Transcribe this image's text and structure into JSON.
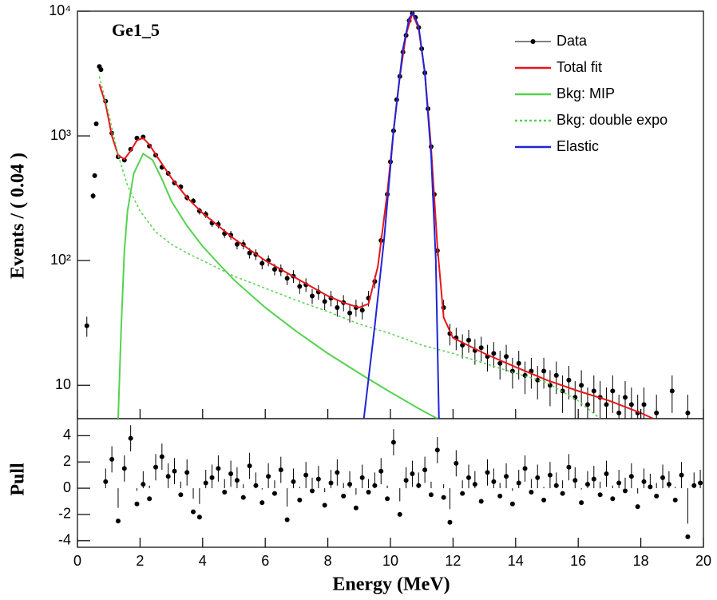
{
  "chart_data": [
    {
      "type": "line",
      "label": "Ge1_5",
      "ylabel": "Events / ( 0.04 )",
      "log_y": true,
      "legend": "top-right",
      "xlim": [
        0,
        20
      ],
      "ylim": [
        5.4,
        10000
      ],
      "yticks": [
        {
          "value": 10,
          "label": "10"
        },
        {
          "value": 100,
          "label": "10²"
        },
        {
          "value": 1000,
          "label": "10³"
        },
        {
          "value": 10000,
          "label": "10⁴"
        }
      ],
      "series": [
        {
          "name": "Data",
          "kind": "points",
          "color": "#000000",
          "x": [
            0.3,
            0.5,
            0.55,
            0.6,
            0.7,
            0.75,
            0.9,
            1.1,
            1.3,
            1.5,
            1.7,
            1.9,
            2.1,
            2.3,
            2.5,
            2.7,
            2.9,
            3.1,
            3.3,
            3.5,
            3.7,
            3.9,
            4.1,
            4.3,
            4.5,
            4.7,
            4.9,
            5.1,
            5.3,
            5.5,
            5.7,
            5.9,
            6.1,
            6.3,
            6.5,
            6.7,
            6.9,
            7.1,
            7.3,
            7.5,
            7.7,
            7.9,
            8.1,
            8.3,
            8.5,
            8.7,
            8.9,
            9.1,
            9.3,
            9.5,
            9.7,
            9.9,
            10.0,
            10.1,
            10.2,
            10.3,
            10.4,
            10.5,
            10.6,
            10.7,
            10.8,
            10.9,
            11.0,
            11.1,
            11.2,
            11.3,
            11.4,
            11.5,
            11.7,
            11.9,
            12.1,
            12.3,
            12.5,
            12.7,
            12.9,
            13.1,
            13.3,
            13.5,
            13.7,
            13.9,
            14.1,
            14.3,
            14.5,
            14.7,
            14.9,
            15.1,
            15.3,
            15.5,
            15.7,
            15.9,
            16.1,
            16.3,
            16.5,
            16.7,
            16.9,
            17.1,
            17.3,
            17.5,
            17.7,
            17.9,
            18.1,
            18.5,
            19.0,
            19.5
          ],
          "values": [
            30,
            330,
            480,
            1250,
            3600,
            3400,
            1900,
            1050,
            680,
            640,
            780,
            960,
            980,
            830,
            700,
            560,
            500,
            420,
            390,
            320,
            300,
            250,
            235,
            200,
            195,
            165,
            160,
            135,
            135,
            115,
            112,
            95,
            100,
            85,
            84,
            72,
            75,
            62,
            64,
            52,
            56,
            47,
            50,
            42,
            46,
            38,
            42,
            40,
            50,
            68,
            145,
            340,
            620,
            1100,
            1950,
            3000,
            4700,
            6400,
            8400,
            9600,
            8900,
            7400,
            5000,
            3200,
            1650,
            820,
            340,
            120,
            42,
            26,
            24,
            21,
            23,
            19,
            20,
            17,
            18,
            15,
            17,
            13,
            15,
            12,
            13,
            11,
            13,
            10,
            12,
            9,
            11,
            8,
            10,
            7,
            9,
            8,
            7,
            9,
            6,
            8,
            7,
            6,
            7,
            6,
            9,
            6
          ],
          "errors": [
            5.5,
            18,
            22,
            35,
            60,
            58,
            44,
            32,
            26,
            25,
            28,
            31,
            31,
            29,
            26,
            24,
            22,
            20,
            20,
            18,
            17,
            16,
            15,
            14,
            14,
            13,
            13,
            12,
            12,
            11,
            11,
            10,
            10,
            9,
            9,
            8.5,
            8.7,
            7.9,
            8,
            7.2,
            7.5,
            6.9,
            7.1,
            6.5,
            6.8,
            6.2,
            6.5,
            6.3,
            7.1,
            8.2,
            12,
            18,
            25,
            33,
            44,
            55,
            69,
            80,
            92,
            98,
            94,
            86,
            71,
            57,
            41,
            29,
            18,
            11,
            6.5,
            5.1,
            4.9,
            4.6,
            4.8,
            4.4,
            4.5,
            4.1,
            4.2,
            3.9,
            4.1,
            3.6,
            3.9,
            3.5,
            3.6,
            3.3,
            3.6,
            3.2,
            3.5,
            3,
            3.3,
            2.8,
            3.2,
            2.6,
            3,
            2.8,
            2.6,
            3,
            2.4,
            2.8,
            2.6,
            2.4,
            2.6,
            2.4,
            3,
            2.4
          ]
        },
        {
          "name": "Total fit",
          "kind": "line",
          "color": "#e8161b",
          "x": [
            0.7,
            0.9,
            1.1,
            1.3,
            1.5,
            1.7,
            1.9,
            2.1,
            2.3,
            2.6,
            3,
            3.5,
            4,
            5,
            6,
            7,
            8,
            8.5,
            9,
            9.3,
            9.6,
            9.9,
            10.1,
            10.3,
            10.5,
            10.7,
            10.9,
            11.1,
            11.3,
            11.5,
            11.7,
            12,
            13,
            14,
            15,
            16,
            17,
            18,
            18.4
          ],
          "values": [
            2600,
            1800,
            1000,
            700,
            650,
            760,
            920,
            960,
            850,
            650,
            460,
            320,
            240,
            150,
            100,
            72,
            52,
            46,
            42,
            45,
            90,
            350,
            1100,
            3000,
            6500,
            9600,
            7300,
            3200,
            800,
            130,
            35,
            24,
            18,
            14,
            11,
            9,
            7.5,
            6,
            5.4
          ]
        },
        {
          "name": "Bkg: MIP",
          "kind": "line",
          "color": "#55d24f",
          "x": [
            1.3,
            1.4,
            1.5,
            1.6,
            1.8,
            2.1,
            2.4,
            2.7,
            3,
            3.5,
            4,
            4.5,
            5,
            6,
            7,
            8,
            9,
            10,
            11,
            11.5
          ],
          "values": [
            5.4,
            30,
            120,
            250,
            500,
            720,
            640,
            450,
            300,
            190,
            130,
            95,
            70,
            42,
            27,
            18,
            12.5,
            8.8,
            6.3,
            5.4
          ]
        },
        {
          "name": "Bkg: double expo",
          "kind": "line",
          "dash": true,
          "color": "#55d24f",
          "x": [
            0.7,
            1,
            1.3,
            1.6,
            2,
            2.5,
            3,
            3.5,
            4,
            5,
            6,
            7,
            8,
            9,
            10,
            11,
            12,
            13,
            14,
            15,
            16,
            16.7
          ],
          "values": [
            3000,
            1500,
            700,
            400,
            250,
            170,
            135,
            115,
            100,
            75,
            60,
            48,
            39,
            31,
            26,
            21,
            18,
            15,
            12.5,
            10.5,
            7.5,
            5.4
          ]
        },
        {
          "name": "Elastic",
          "kind": "line",
          "color": "#1f24d6",
          "x": [
            9.15,
            9.5,
            9.8,
            10.1,
            10.4,
            10.6,
            10.72,
            10.9,
            11.1,
            11.3,
            11.45,
            11.55
          ],
          "values": [
            5.4,
            30,
            150,
            1100,
            5000,
            8800,
            9700,
            7600,
            3200,
            700,
            100,
            5.4
          ]
        }
      ]
    },
    {
      "type": "scatter",
      "ylabel": "Pull",
      "xlabel": "Energy (MeV)",
      "color": "#000000",
      "xlim": [
        0,
        20
      ],
      "ylim": [
        -4.5,
        5.3
      ],
      "xticks": [
        0,
        2,
        4,
        6,
        8,
        10,
        12,
        14,
        16,
        18,
        20
      ],
      "yticks": [
        -4,
        -2,
        0,
        2,
        4
      ],
      "x": [
        0.9,
        1.1,
        1.3,
        1.5,
        1.7,
        1.9,
        2.1,
        2.3,
        2.5,
        2.7,
        2.9,
        3.1,
        3.3,
        3.5,
        3.7,
        3.9,
        4.1,
        4.3,
        4.5,
        4.7,
        4.9,
        5.1,
        5.3,
        5.5,
        5.7,
        5.9,
        6.1,
        6.3,
        6.5,
        6.7,
        6.9,
        7.1,
        7.3,
        7.5,
        7.7,
        7.9,
        8.1,
        8.3,
        8.5,
        8.7,
        8.9,
        9.1,
        9.3,
        9.5,
        9.7,
        9.9,
        10.1,
        10.3,
        10.5,
        10.7,
        10.9,
        11.1,
        11.3,
        11.5,
        11.7,
        11.9,
        12.1,
        12.3,
        12.5,
        12.7,
        12.9,
        13.1,
        13.3,
        13.5,
        13.7,
        13.9,
        14.1,
        14.3,
        14.5,
        14.7,
        14.9,
        15.1,
        15.3,
        15.5,
        15.7,
        15.9,
        16.1,
        16.3,
        16.5,
        16.7,
        16.9,
        17.1,
        17.3,
        17.5,
        17.7,
        17.9,
        18.1,
        18.3,
        18.5,
        18.7,
        18.9,
        19.1,
        19.3,
        19.5,
        19.7,
        19.9
      ],
      "values": [
        0.5,
        2.2,
        -2.5,
        1.5,
        3.8,
        -1.2,
        0.3,
        -0.8,
        1.6,
        2.4,
        0.9,
        1.3,
        -0.5,
        1.2,
        -1.8,
        -2.2,
        0.4,
        0.8,
        1.5,
        -0.3,
        1.1,
        0.6,
        -0.7,
        1.7,
        0.2,
        -1.1,
        0.9,
        -0.4,
        1.4,
        -2.4,
        0.5,
        -0.9,
        1.0,
        -0.2,
        0.7,
        -1.3,
        0.4,
        1.2,
        -0.6,
        0.3,
        -1.5,
        0.8,
        -0.3,
        0.2,
        1.3,
        -0.8,
        3.5,
        -2.0,
        0.6,
        1.1,
        0.2,
        1.4,
        -0.5,
        2.9,
        -0.7,
        -2.6,
        1.9,
        -0.4,
        0.8,
        0.3,
        -1.0,
        1.2,
        0.5,
        -0.6,
        0.9,
        -1.2,
        0.4,
        1.5,
        -0.3,
        0.8,
        -0.9,
        1.0,
        0.2,
        -0.4,
        1.6,
        0.6,
        -1.1,
        0.3,
        0.7,
        -0.5,
        1.1,
        -0.8,
        0.4,
        -0.2,
        0.9,
        -1.4,
        0.5,
        0.1,
        -0.6,
        0.8,
        0.3,
        -0.9,
        1.0,
        -3.7,
        0.2,
        0.4
      ],
      "errors": [
        1,
        1,
        1,
        1,
        1,
        1,
        1,
        1,
        1,
        1,
        1,
        1,
        1,
        1,
        1,
        1,
        1,
        1,
        1,
        1,
        1,
        1,
        1,
        1,
        1,
        1,
        1,
        1,
        1,
        1,
        1,
        1,
        1,
        1,
        1,
        1,
        1,
        1,
        1,
        1,
        1,
        1,
        1,
        1,
        1,
        1,
        1,
        1,
        1,
        1,
        1,
        1,
        1,
        1,
        1,
        1,
        1,
        1,
        1,
        1,
        1,
        1,
        1,
        1,
        1,
        1,
        1,
        1,
        1,
        1,
        1,
        1,
        1,
        1,
        1,
        1,
        1,
        1,
        1,
        1,
        1,
        1,
        1,
        1,
        1,
        1,
        1,
        1,
        1,
        1,
        1,
        1,
        1,
        1,
        1,
        1
      ]
    }
  ]
}
